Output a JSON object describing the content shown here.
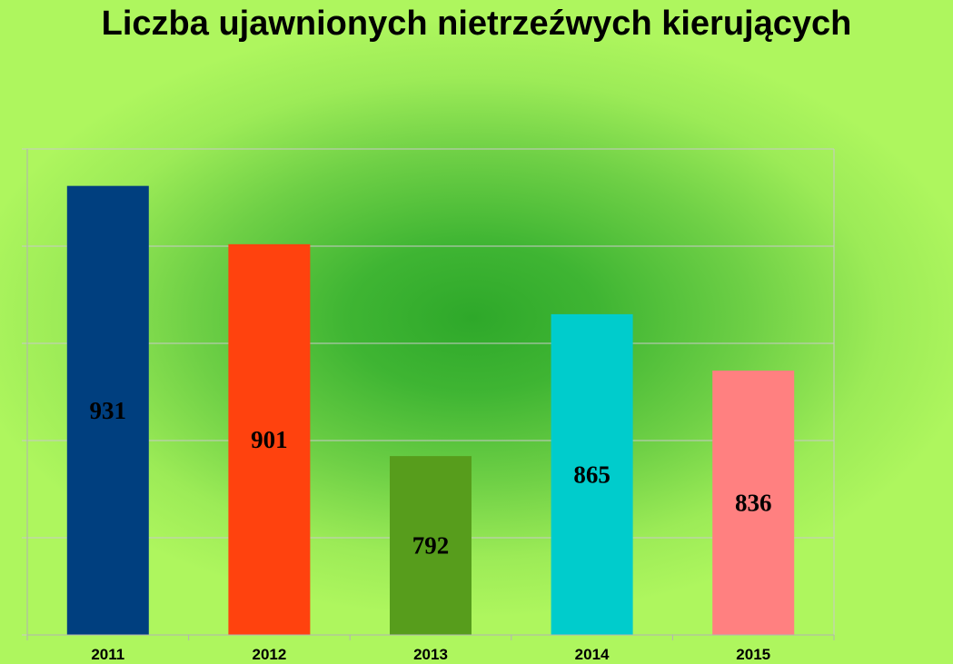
{
  "chart_data": {
    "type": "bar",
    "title": "Liczba ujawnionych nietrzeźwych kierujących",
    "categories": [
      "2011",
      "2012",
      "2013",
      "2014",
      "2015"
    ],
    "values": [
      931,
      901,
      792,
      865,
      836
    ],
    "colors": [
      "#003f7f",
      "#ff420e",
      "#579d1c",
      "#00cccc",
      "#ff8080"
    ],
    "ylim": [
      700,
      950
    ],
    "grid": true,
    "legend": "none",
    "xlabel": "",
    "ylabel": ""
  }
}
